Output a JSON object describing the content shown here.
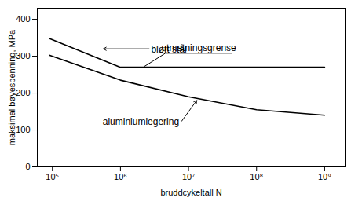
{
  "chart_data": {
    "type": "line",
    "x_label": "bruddcykeltall N",
    "y_label": "maksimal bøyespenning, MPa",
    "log": "x",
    "grid": false,
    "xlim": [
      60000,
      2000000000
    ],
    "ylim": [
      0,
      430
    ],
    "xticks": [
      {
        "value": 100000,
        "label": "10⁵"
      },
      {
        "value": 1000000,
        "label": "10⁶"
      },
      {
        "value": 10000000,
        "label": "10⁷"
      },
      {
        "value": 100000000,
        "label": "10⁸"
      },
      {
        "value": 1000000000,
        "label": "10⁹"
      }
    ],
    "yticks": [
      0,
      100,
      200,
      300,
      400
    ],
    "series": [
      {
        "name": "bløtt stål",
        "color": "#000000",
        "x": [
          90000,
          1000000,
          1000000000
        ],
        "values": [
          348,
          270,
          270
        ]
      },
      {
        "name": "aluminiumlegering",
        "color": "#000000",
        "x": [
          90000,
          1000000,
          10000000,
          100000000,
          1000000000
        ],
        "values": [
          303,
          235,
          190,
          155,
          140
        ]
      }
    ],
    "annotations": [
      "utmatningsgrense"
    ]
  }
}
